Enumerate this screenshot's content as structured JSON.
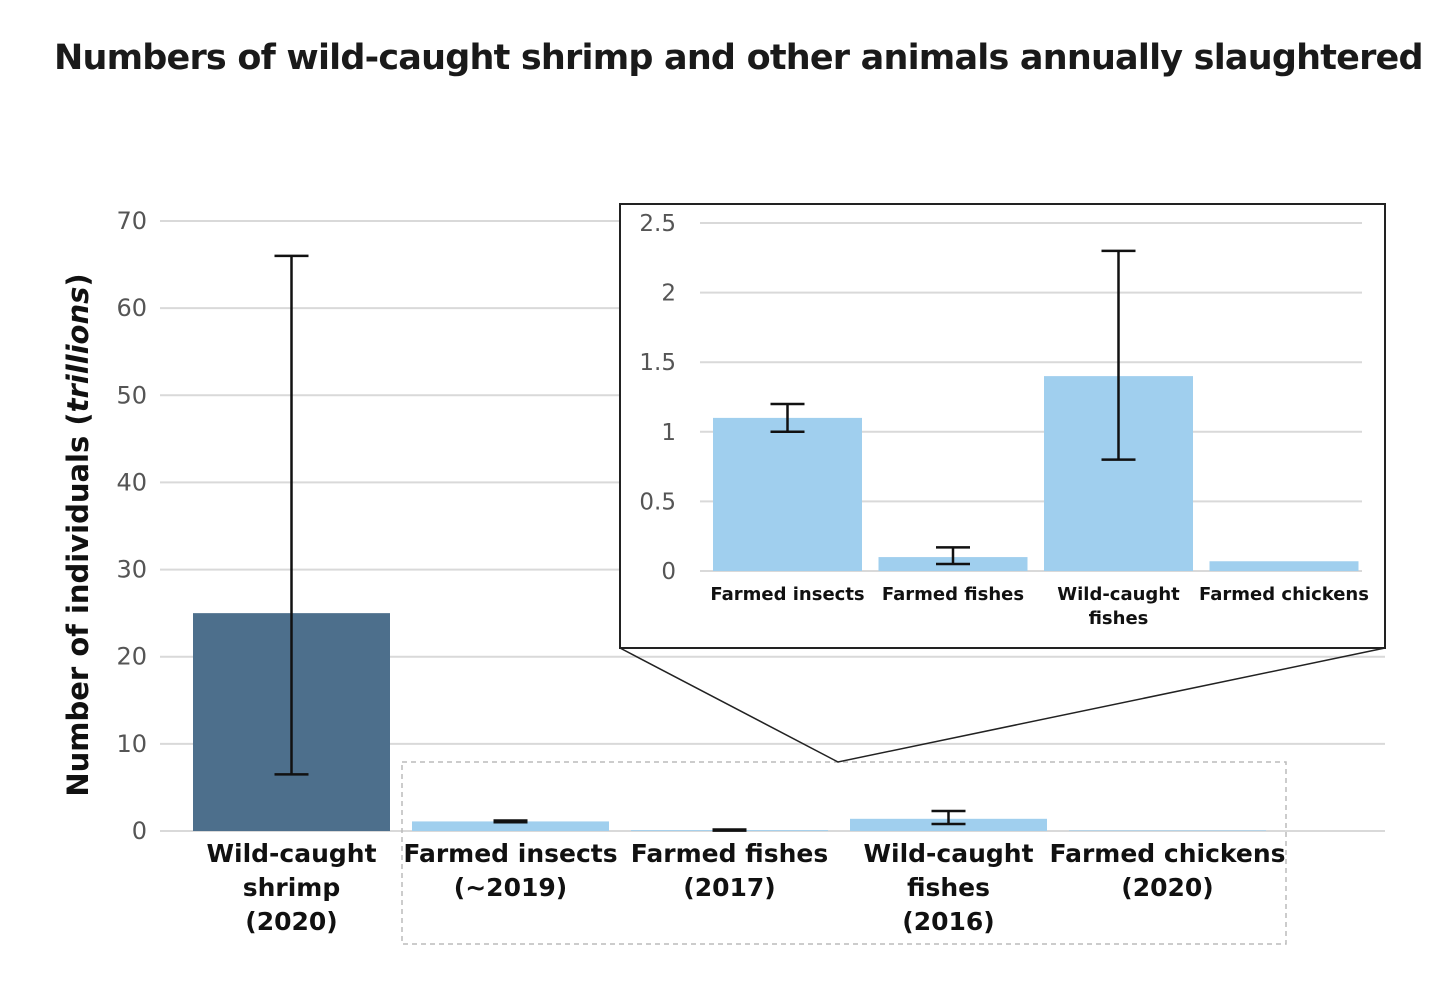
{
  "chart_data": [
    {
      "type": "bar",
      "title": "Numbers of wild-caught shrimp and other animals annually slaughtered",
      "ylabel_main": "Number of individuals (",
      "ylabel_italic": "trillions",
      "ylabel_end": ")",
      "ylim": [
        0,
        70
      ],
      "yticks": [
        "0",
        "10",
        "20",
        "30",
        "40",
        "50",
        "60",
        "70"
      ],
      "ytick_values": [
        0,
        10,
        20,
        30,
        40,
        50,
        60,
        70
      ],
      "grid": true,
      "categories": [
        [
          "Wild-caught",
          "shrimp",
          "(2020)"
        ],
        [
          "Farmed insects",
          "(~2019)"
        ],
        [
          "Farmed fishes",
          "(2017)"
        ],
        [
          "Wild-caught",
          "fishes",
          "(2016)"
        ],
        [
          "Farmed chickens",
          "(2020)"
        ]
      ],
      "values": [
        25,
        1.1,
        0.1,
        1.4,
        0.07
      ],
      "error_low": [
        6.5,
        1.0,
        0.05,
        0.8,
        null
      ],
      "error_high": [
        66,
        1.2,
        0.17,
        2.3,
        null
      ],
      "colors": [
        "#4d6f8c",
        "#a0cfee",
        "#a0cfee",
        "#a0cfee",
        "#a0cfee"
      ]
    },
    {
      "type": "bar",
      "role": "inset-zoom",
      "ylim": [
        0,
        2.5
      ],
      "yticks": [
        "0",
        "0.5",
        "1",
        "1.5",
        "2",
        "2.5"
      ],
      "ytick_values": [
        0,
        0.5,
        1,
        1.5,
        2,
        2.5
      ],
      "grid": true,
      "categories": [
        [
          "Farmed insects"
        ],
        [
          "Farmed fishes"
        ],
        [
          "Wild-caught",
          "fishes"
        ],
        [
          "Farmed chickens"
        ]
      ],
      "values": [
        1.1,
        0.1,
        1.4,
        0.07
      ],
      "error_low": [
        1.0,
        0.05,
        0.8,
        null
      ],
      "error_high": [
        1.2,
        0.17,
        2.3,
        null
      ],
      "colors": [
        "#a0cfee",
        "#a0cfee",
        "#a0cfee",
        "#a0cfee"
      ]
    }
  ]
}
